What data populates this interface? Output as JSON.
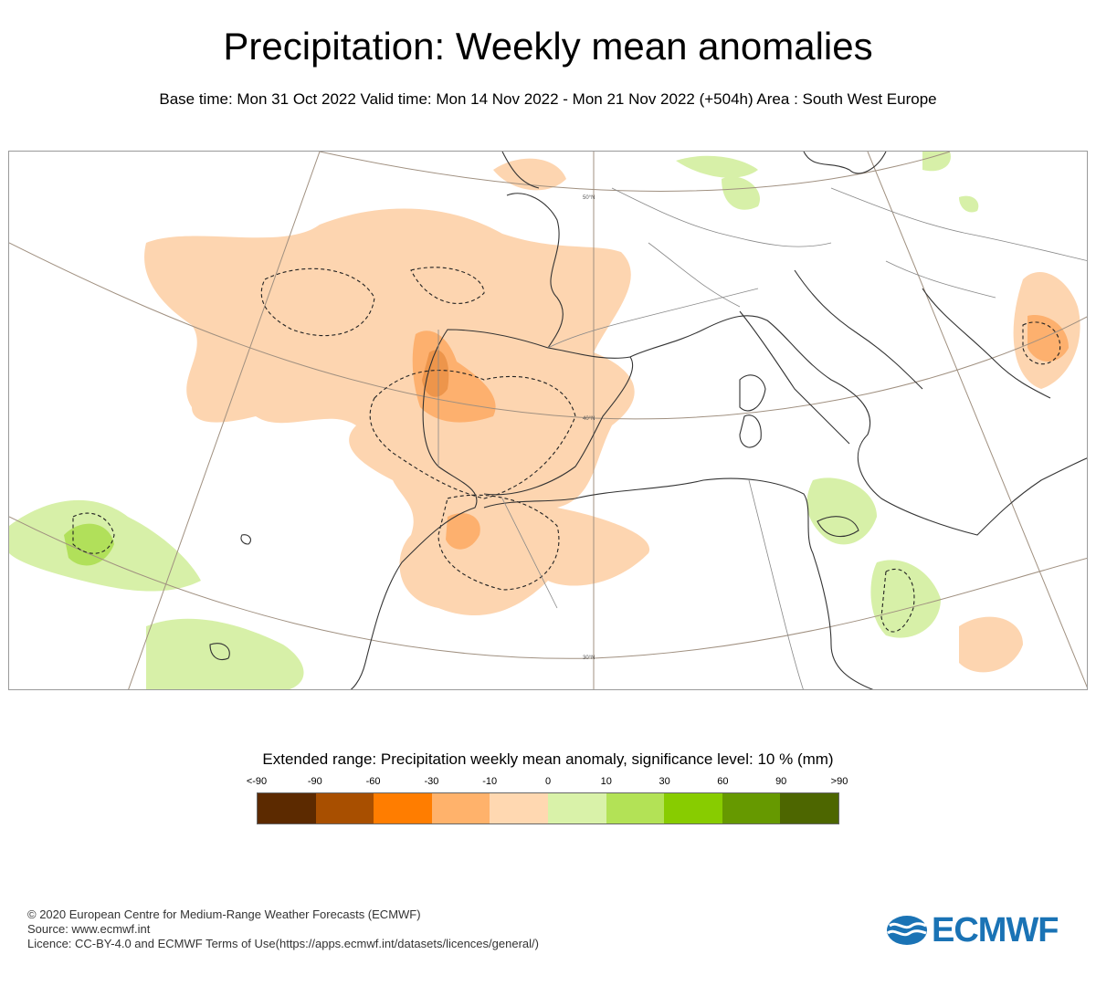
{
  "title": "Precipitation: Weekly mean anomalies",
  "subtitle": "Base time: Mon 31 Oct 2022 Valid time: Mon 14 Nov 2022 - Mon 21 Nov 2022 (+504h) Area : South West Europe",
  "map": {
    "latitude_labels": [
      "50°N",
      "40°N",
      "30°N"
    ],
    "colors": {
      "land_outline": "#333333",
      "borders": "#888888",
      "graticule": "#a09080",
      "dry_light": "#fdd5b0",
      "dry_medium": "#fdb06e",
      "dry_strong": "#e08030",
      "wet_light": "#d7f0a8",
      "wet_medium": "#b1e05a"
    }
  },
  "legend": {
    "title": "Extended range: Precipitation weekly mean anomaly, significance level: 10 % (mm)",
    "labels": [
      "<-90",
      "-90",
      "-60",
      "-30",
      "-10",
      "0",
      "10",
      "30",
      "60",
      "90",
      ">90"
    ],
    "colors": [
      "#5c2a00",
      "#a84f00",
      "#ff7d00",
      "#ffb26b",
      "#ffd8b1",
      "#d9f2a9",
      "#b3e256",
      "#88cc00",
      "#669900",
      "#4d6600"
    ]
  },
  "footer": {
    "copyright": "© 2020 European Centre for Medium-Range Weather Forecasts (ECMWF)",
    "source": "Source: www.ecmwf.int",
    "licence": "Licence: CC-BY-4.0 and ECMWF Terms of Use(https://apps.ecmwf.int/datasets/licences/general/)"
  },
  "logo": {
    "text": "ECMWF",
    "color": "#1a73b5"
  }
}
